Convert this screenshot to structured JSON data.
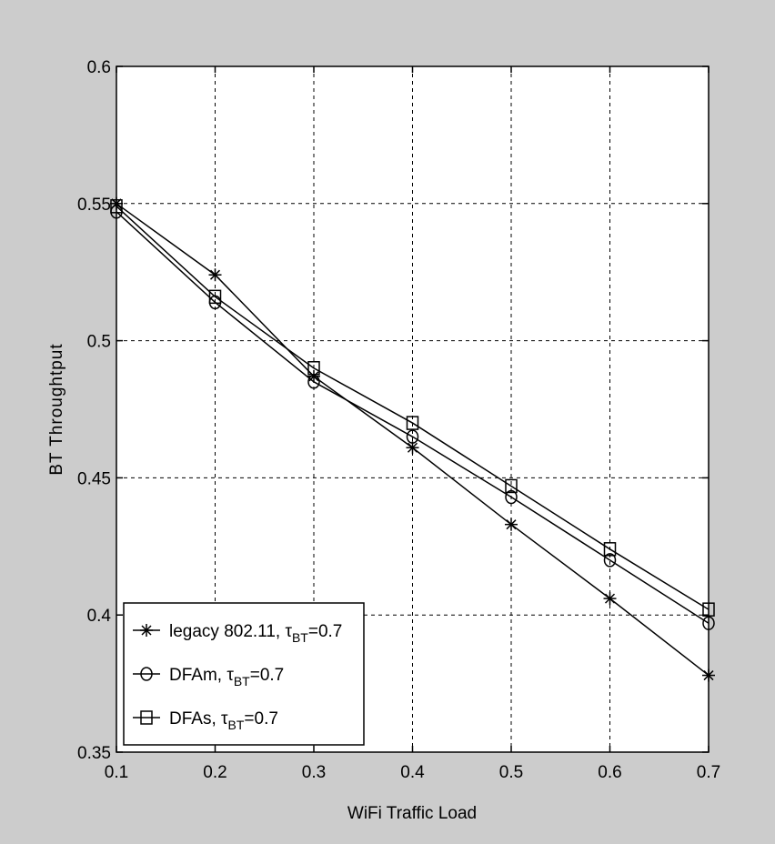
{
  "chart_data": {
    "type": "line",
    "xlabel": "WiFi Traffic Load",
    "ylabel": "BT Throughtput",
    "xlim": [
      0.1,
      0.7
    ],
    "ylim": [
      0.35,
      0.6
    ],
    "x_ticks": [
      "0.1",
      "0.2",
      "0.3",
      "0.4",
      "0.5",
      "0.6",
      "0.7"
    ],
    "y_ticks": [
      "0.35",
      "0.4",
      "0.45",
      "0.5",
      "0.55",
      "0.6"
    ],
    "grid": true,
    "legend_position": "bottom-left",
    "x": [
      0.1,
      0.2,
      0.3,
      0.4,
      0.5,
      0.6,
      0.7
    ],
    "series": [
      {
        "name": "legacy 802.11, τBT=0.7",
        "label_main": "legacy 802.11, τ",
        "label_sub": "BT",
        "label_tail": "=0.7",
        "marker": "star",
        "values": [
          0.55,
          0.524,
          0.487,
          0.461,
          0.433,
          0.406,
          0.378
        ]
      },
      {
        "name": "DFAm, τBT=0.7",
        "label_main": "DFAm, τ",
        "label_sub": "BT",
        "label_tail": "=0.7",
        "marker": "circle",
        "values": [
          0.547,
          0.514,
          0.485,
          0.465,
          0.443,
          0.42,
          0.397
        ]
      },
      {
        "name": "DFAs, τBT=0.7",
        "label_main": "DFAs, τ",
        "label_sub": "BT",
        "label_tail": "=0.7",
        "marker": "square",
        "values": [
          0.549,
          0.516,
          0.49,
          0.47,
          0.447,
          0.424,
          0.402
        ]
      }
    ]
  }
}
